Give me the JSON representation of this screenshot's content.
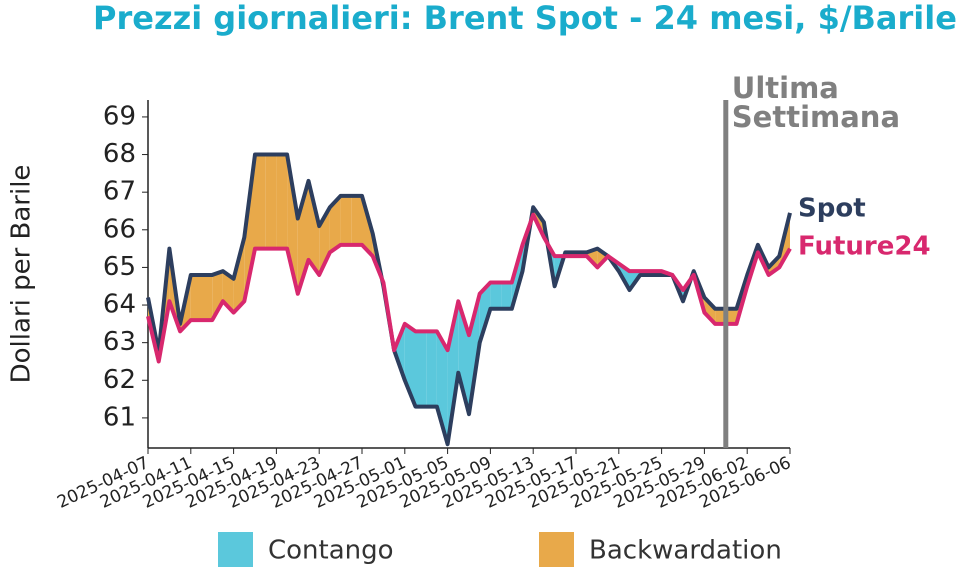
{
  "chart_data": {
    "type": "line",
    "title": "Prezzi giornalieri: Brent Spot - 24 mesi, $/Barile",
    "y_label": "Dollari per Barile",
    "x": [
      "2025-04-07",
      "2025-04-08",
      "2025-04-09",
      "2025-04-10",
      "2025-04-11",
      "2025-04-12",
      "2025-04-13",
      "2025-04-14",
      "2025-04-15",
      "2025-04-16",
      "2025-04-17",
      "2025-04-18",
      "2025-04-19",
      "2025-04-20",
      "2025-04-21",
      "2025-04-22",
      "2025-04-23",
      "2025-04-24",
      "2025-04-25",
      "2025-04-26",
      "2025-04-27",
      "2025-04-28",
      "2025-04-29",
      "2025-04-30",
      "2025-05-01",
      "2025-05-02",
      "2025-05-03",
      "2025-05-04",
      "2025-05-05",
      "2025-05-06",
      "2025-05-07",
      "2025-05-08",
      "2025-05-09",
      "2025-05-10",
      "2025-05-11",
      "2025-05-12",
      "2025-05-13",
      "2025-05-14",
      "2025-05-15",
      "2025-05-16",
      "2025-05-17",
      "2025-05-18",
      "2025-05-19",
      "2025-05-20",
      "2025-05-21",
      "2025-05-22",
      "2025-05-23",
      "2025-05-24",
      "2025-05-25",
      "2025-05-26",
      "2025-05-27",
      "2025-05-28",
      "2025-05-29",
      "2025-05-30",
      "2025-05-31",
      "2025-06-01",
      "2025-06-02",
      "2025-06-03",
      "2025-06-04",
      "2025-06-05",
      "2025-06-06"
    ],
    "xticks": [
      "2025-04-07",
      "2025-04-11",
      "2025-04-15",
      "2025-04-19",
      "2025-04-23",
      "2025-04-27",
      "2025-05-01",
      "2025-05-05",
      "2025-05-09",
      "2025-05-13",
      "2025-05-17",
      "2025-05-21",
      "2025-05-25",
      "2025-05-29",
      "2025-06-02",
      "2025-06-06"
    ],
    "series": [
      {
        "name": "Spot",
        "color": "#2d3e5e",
        "values": [
          64.2,
          62.75,
          65.5,
          63.5,
          64.8,
          64.8,
          64.8,
          64.9,
          64.7,
          65.8,
          68.0,
          68.0,
          68.0,
          68.0,
          66.3,
          67.3,
          66.1,
          66.6,
          66.9,
          66.9,
          66.9,
          65.9,
          64.5,
          62.8,
          62.0,
          61.3,
          61.3,
          61.3,
          60.3,
          62.2,
          61.1,
          63.0,
          63.9,
          63.9,
          63.9,
          64.9,
          66.6,
          66.2,
          64.5,
          65.4,
          65.4,
          65.4,
          65.5,
          65.3,
          64.9,
          64.4,
          64.8,
          64.8,
          64.8,
          64.8,
          64.1,
          64.9,
          64.2,
          63.9,
          63.9,
          63.9,
          64.8,
          65.6,
          65.0,
          65.3,
          66.45
        ]
      },
      {
        "name": "Future24",
        "color": "#d8286e",
        "values": [
          63.7,
          62.5,
          64.1,
          63.3,
          63.6,
          63.6,
          63.6,
          64.1,
          63.8,
          64.1,
          65.5,
          65.5,
          65.5,
          65.5,
          64.3,
          65.2,
          64.8,
          65.4,
          65.6,
          65.6,
          65.6,
          65.3,
          64.6,
          62.8,
          63.5,
          63.3,
          63.3,
          63.3,
          62.8,
          64.1,
          63.2,
          64.3,
          64.6,
          64.6,
          64.6,
          65.6,
          66.4,
          65.8,
          65.3,
          65.3,
          65.3,
          65.3,
          65.0,
          65.3,
          65.1,
          64.9,
          64.9,
          64.9,
          64.9,
          64.8,
          64.4,
          64.8,
          63.8,
          63.5,
          63.5,
          63.5,
          64.5,
          65.4,
          64.8,
          65.0,
          65.5
        ]
      }
    ],
    "fills": [
      {
        "name": "Contango",
        "color": "#5bc8dc"
      },
      {
        "name": "Backwardation",
        "color": "#e8a94a"
      }
    ],
    "annotation": {
      "x": "2025-05-31",
      "lines": [
        "Ultima",
        "Settimana"
      ],
      "color": "#808080"
    },
    "ylim": [
      60.2,
      69.45
    ],
    "yticks": [
      61,
      62,
      63,
      64,
      65,
      66,
      67,
      68,
      69
    ]
  }
}
